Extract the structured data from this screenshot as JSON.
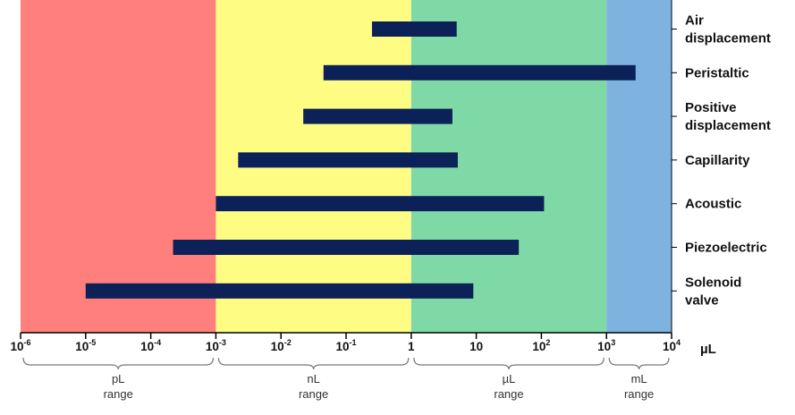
{
  "chart_data": {
    "type": "bar",
    "orientation": "horizontal",
    "x_scale": "log",
    "xlim": [
      1e-06,
      10000
    ],
    "xunit": "µL",
    "grid": false,
    "categories": [
      [
        "Air",
        "displacement"
      ],
      [
        "Peristaltic"
      ],
      [
        "Positive",
        "displacement"
      ],
      [
        "Capillarity"
      ],
      [
        "Acoustic"
      ],
      [
        "Piezoelectric"
      ],
      [
        "Solenoid",
        "valve"
      ]
    ],
    "ranges": [
      [
        0.25,
        5
      ],
      [
        0.045,
        2800
      ],
      [
        0.022,
        4.3
      ],
      [
        0.0022,
        5.2
      ],
      [
        0.001,
        110
      ],
      [
        0.00022,
        45
      ],
      [
        1e-05,
        9
      ]
    ],
    "bar_color": "#0b2157",
    "ticks": [
      {
        "base": "10",
        "exp": "-6",
        "value": 1e-06
      },
      {
        "base": "10",
        "exp": "-5",
        "value": 1e-05
      },
      {
        "base": "10",
        "exp": "-4",
        "value": 0.0001
      },
      {
        "base": "10",
        "exp": "-3",
        "value": 0.001
      },
      {
        "base": "10",
        "exp": "-2",
        "value": 0.01
      },
      {
        "base": "10",
        "exp": "-1",
        "value": 0.1
      },
      {
        "base": "1",
        "exp": "",
        "value": 1
      },
      {
        "base": "10",
        "exp": "",
        "value": 10
      },
      {
        "base": "10",
        "exp": "2",
        "value": 100
      },
      {
        "base": "10",
        "exp": "3",
        "value": 1000
      },
      {
        "base": "10",
        "exp": "4",
        "value": 10000
      }
    ],
    "bands": [
      {
        "from": 1e-06,
        "to": 0.001,
        "color": "#fe7f7b",
        "label": [
          "pL",
          "range"
        ]
      },
      {
        "from": 0.001,
        "to": 1,
        "color": "#fefc83",
        "label": [
          "nL",
          "range"
        ]
      },
      {
        "from": 1,
        "to": 1000,
        "color": "#7fd9a7",
        "label": [
          "µL",
          "range"
        ]
      },
      {
        "from": 1000,
        "to": 10000,
        "color": "#7db3de",
        "label": [
          "mL",
          "range"
        ]
      }
    ]
  }
}
